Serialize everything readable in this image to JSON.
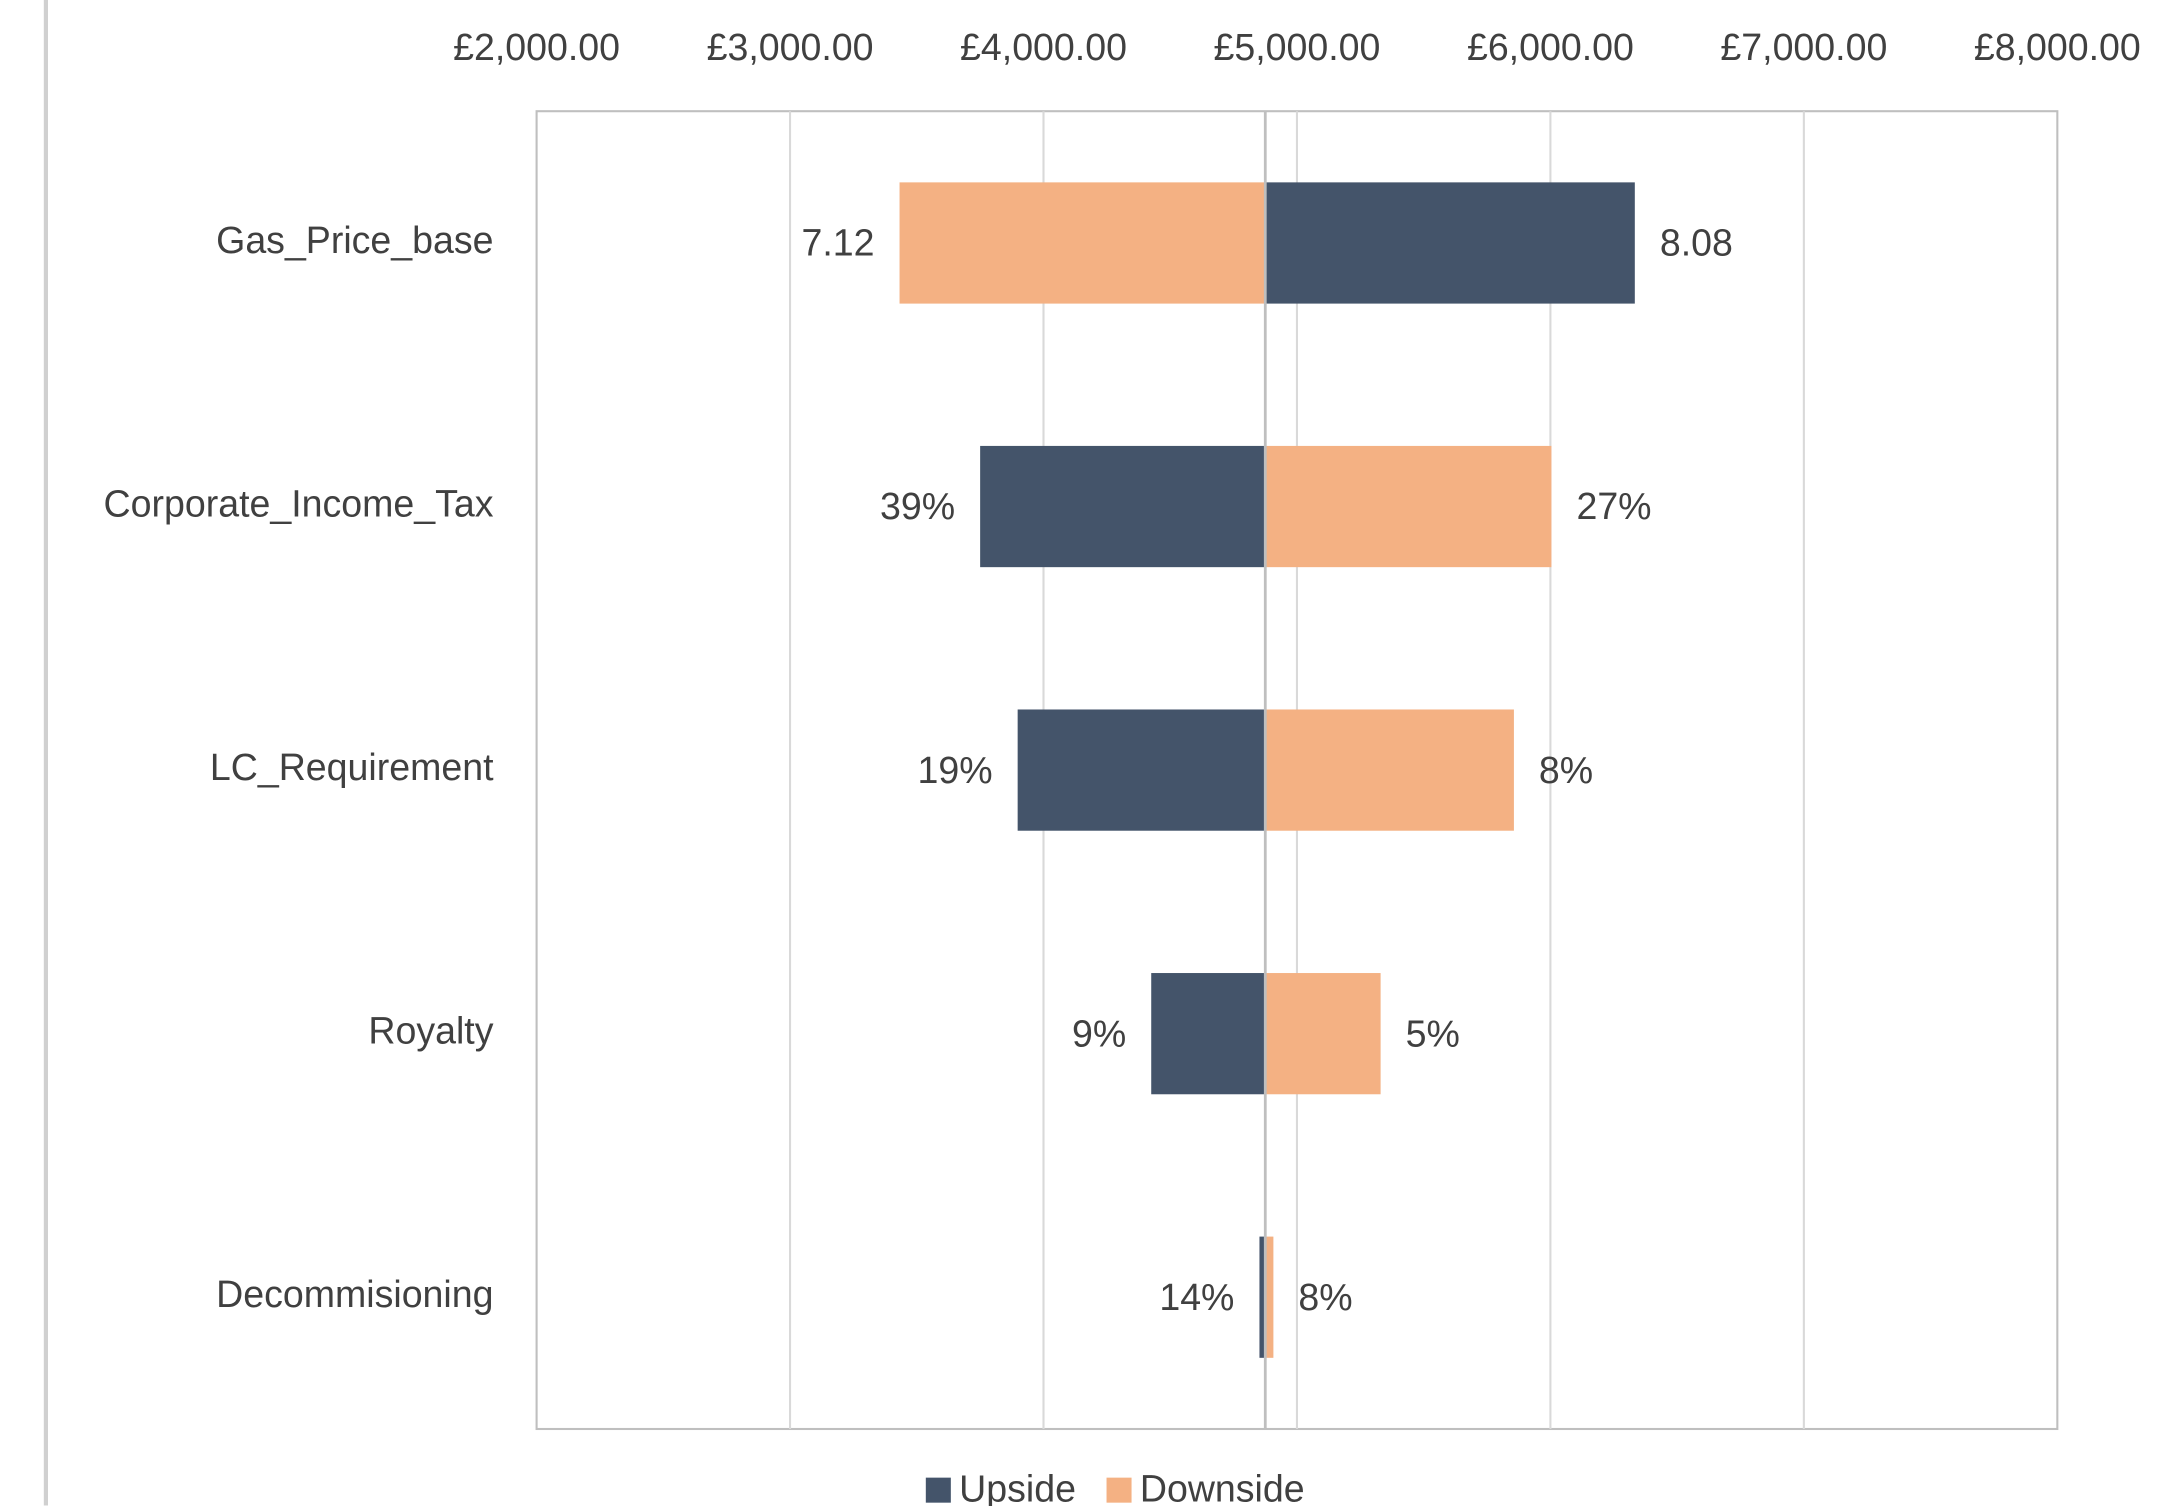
{
  "chart_data": {
    "type": "tornado",
    "categories": [
      "Gas_Price_base",
      "Corporate_Income_Tax",
      "LC_Requirement",
      "Royalty",
      "Decommisioning"
    ],
    "base": 4875,
    "series": [
      {
        "name": "Upside",
        "color": "#44546a",
        "values": [
          6333,
          3750,
          3898,
          4425,
          4852
        ],
        "data_labels": [
          "8.08",
          "39%",
          "19%",
          "9%",
          "14%"
        ]
      },
      {
        "name": "Downside",
        "color": "#f4b183",
        "values": [
          3432,
          6004,
          5856,
          5330,
          4907
        ],
        "data_labels": [
          "7.12",
          "27%",
          "8%",
          "5%",
          "8%"
        ]
      }
    ],
    "xlim": [
      2000,
      8000
    ],
    "xticks": [
      {
        "value": 2000,
        "label": "£2,000.00"
      },
      {
        "value": 3000,
        "label": "£3,000.00"
      },
      {
        "value": 4000,
        "label": "£4,000.00"
      },
      {
        "value": 5000,
        "label": "£5,000.00"
      },
      {
        "value": 6000,
        "label": "£6,000.00"
      },
      {
        "value": 7000,
        "label": "£7,000.00"
      },
      {
        "value": 8000,
        "label": "£8,000.00"
      }
    ],
    "grid": true,
    "legend": "bottom"
  }
}
